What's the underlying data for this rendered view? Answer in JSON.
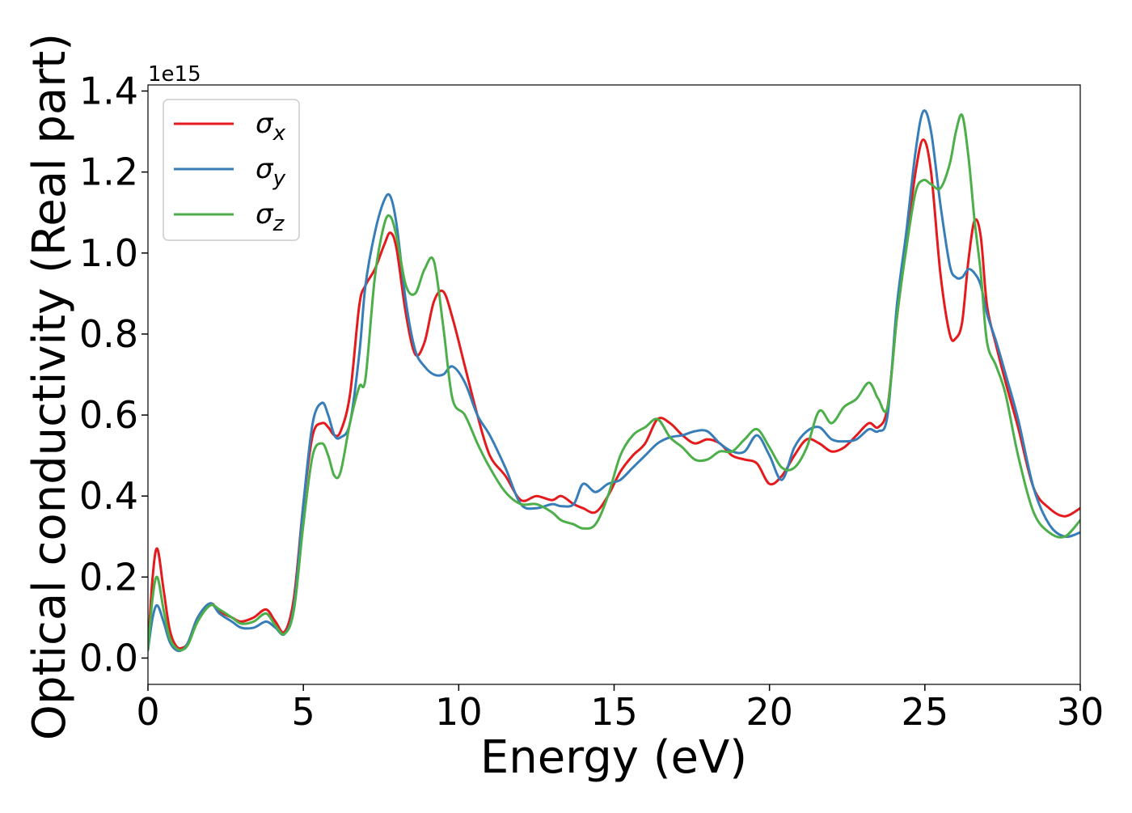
{
  "chart_data": {
    "type": "line",
    "title": "",
    "xlabel": "Energy (eV)",
    "ylabel": "Optical conductivity (Real part)",
    "y_offset_label": "1e15",
    "xlim": [
      0,
      30
    ],
    "ylim": [
      -0.065,
      1.415
    ],
    "x_ticks": [
      0,
      5,
      10,
      15,
      20,
      25,
      30
    ],
    "x_tick_labels": [
      "0",
      "5",
      "10",
      "15",
      "20",
      "25",
      "30"
    ],
    "y_ticks": [
      0.0,
      0.2,
      0.4,
      0.6,
      0.8,
      1.0,
      1.2,
      1.4
    ],
    "y_tick_labels": [
      "0.0",
      "0.2",
      "0.4",
      "0.6",
      "0.8",
      "1.0",
      "1.2",
      "1.4"
    ],
    "grid": false,
    "legend_position": "top-left",
    "series": [
      {
        "name": "σx",
        "legend_symbol": "σ",
        "legend_subscript": "x",
        "color": "#e41a1c",
        "x": [
          0,
          0.15,
          0.3,
          0.5,
          0.7,
          0.9,
          1.1,
          1.3,
          1.6,
          2.0,
          2.3,
          2.7,
          3.0,
          3.4,
          3.8,
          4.1,
          4.4,
          4.7,
          5.0,
          5.3,
          5.6,
          5.8,
          6.0,
          6.2,
          6.5,
          6.8,
          7.0,
          7.3,
          7.6,
          7.8,
          8.0,
          8.3,
          8.6,
          8.9,
          9.2,
          9.5,
          9.8,
          10.2,
          10.6,
          11.0,
          11.5,
          12.0,
          12.5,
          13.0,
          13.3,
          13.7,
          14.0,
          14.4,
          14.8,
          15.2,
          15.6,
          16.0,
          16.4,
          16.8,
          17.2,
          17.6,
          18.0,
          18.4,
          18.8,
          19.2,
          19.6,
          20.0,
          20.4,
          20.8,
          21.2,
          21.6,
          22.0,
          22.4,
          22.8,
          23.2,
          23.5,
          23.8,
          24.1,
          24.4,
          24.7,
          24.95,
          25.2,
          25.5,
          25.8,
          26.0,
          26.2,
          26.4,
          26.6,
          26.8,
          27.0,
          27.3,
          27.6,
          28.0,
          28.5,
          29.0,
          29.5,
          30.0
        ],
        "y": [
          0.02,
          0.2,
          0.27,
          0.17,
          0.07,
          0.03,
          0.025,
          0.04,
          0.1,
          0.135,
          0.115,
          0.1,
          0.09,
          0.1,
          0.12,
          0.09,
          0.065,
          0.15,
          0.38,
          0.55,
          0.58,
          0.57,
          0.55,
          0.56,
          0.65,
          0.87,
          0.92,
          0.96,
          1.02,
          1.05,
          1.01,
          0.85,
          0.75,
          0.78,
          0.88,
          0.905,
          0.84,
          0.72,
          0.6,
          0.5,
          0.45,
          0.39,
          0.4,
          0.39,
          0.4,
          0.38,
          0.37,
          0.36,
          0.4,
          0.46,
          0.5,
          0.53,
          0.59,
          0.58,
          0.55,
          0.53,
          0.54,
          0.53,
          0.5,
          0.49,
          0.48,
          0.43,
          0.45,
          0.5,
          0.54,
          0.53,
          0.51,
          0.52,
          0.55,
          0.58,
          0.57,
          0.62,
          0.84,
          1.02,
          1.2,
          1.28,
          1.2,
          0.95,
          0.8,
          0.79,
          0.83,
          0.98,
          1.08,
          1.04,
          0.87,
          0.77,
          0.68,
          0.57,
          0.42,
          0.37,
          0.35,
          0.37
        ]
      },
      {
        "name": "σy",
        "legend_symbol": "σ",
        "legend_subscript": "y",
        "color": "#377eb8",
        "x": [
          0,
          0.15,
          0.3,
          0.5,
          0.7,
          0.9,
          1.1,
          1.3,
          1.6,
          2.0,
          2.3,
          2.7,
          3.0,
          3.4,
          3.8,
          4.1,
          4.4,
          4.7,
          5.0,
          5.3,
          5.6,
          5.8,
          6.0,
          6.2,
          6.5,
          6.8,
          7.0,
          7.3,
          7.6,
          7.8,
          8.0,
          8.3,
          8.6,
          8.9,
          9.2,
          9.5,
          9.8,
          10.2,
          10.6,
          11.0,
          11.5,
          12.0,
          12.5,
          13.0,
          13.3,
          13.7,
          14.0,
          14.4,
          14.8,
          15.2,
          15.6,
          16.0,
          16.4,
          16.8,
          17.2,
          17.6,
          18.0,
          18.4,
          18.8,
          19.2,
          19.6,
          20.0,
          20.4,
          20.8,
          21.2,
          21.6,
          22.0,
          22.4,
          22.8,
          23.2,
          23.5,
          23.8,
          24.1,
          24.4,
          24.7,
          24.95,
          25.2,
          25.5,
          25.8,
          26.0,
          26.2,
          26.4,
          26.6,
          26.8,
          27.0,
          27.3,
          27.6,
          28.0,
          28.5,
          29.0,
          29.5,
          30.0
        ],
        "y": [
          0.02,
          0.1,
          0.13,
          0.09,
          0.04,
          0.02,
          0.02,
          0.04,
          0.1,
          0.135,
          0.11,
          0.09,
          0.075,
          0.075,
          0.09,
          0.075,
          0.06,
          0.13,
          0.38,
          0.58,
          0.63,
          0.6,
          0.55,
          0.545,
          0.58,
          0.75,
          0.92,
          1.05,
          1.13,
          1.14,
          1.07,
          0.88,
          0.76,
          0.72,
          0.7,
          0.7,
          0.72,
          0.68,
          0.6,
          0.55,
          0.47,
          0.38,
          0.37,
          0.38,
          0.375,
          0.38,
          0.43,
          0.41,
          0.43,
          0.44,
          0.47,
          0.5,
          0.53,
          0.545,
          0.55,
          0.56,
          0.56,
          0.53,
          0.51,
          0.51,
          0.55,
          0.5,
          0.44,
          0.52,
          0.56,
          0.57,
          0.54,
          0.535,
          0.54,
          0.565,
          0.56,
          0.6,
          0.87,
          1.05,
          1.25,
          1.35,
          1.3,
          1.12,
          0.97,
          0.94,
          0.94,
          0.96,
          0.95,
          0.92,
          0.85,
          0.78,
          0.7,
          0.59,
          0.42,
          0.33,
          0.3,
          0.31
        ]
      },
      {
        "name": "σz",
        "legend_symbol": "σ",
        "legend_subscript": "z",
        "color": "#4daf4a",
        "x": [
          0,
          0.15,
          0.3,
          0.5,
          0.7,
          0.9,
          1.1,
          1.3,
          1.6,
          2.0,
          2.3,
          2.7,
          3.0,
          3.4,
          3.8,
          4.1,
          4.4,
          4.7,
          5.0,
          5.3,
          5.6,
          5.8,
          6.0,
          6.2,
          6.5,
          6.8,
          7.0,
          7.3,
          7.6,
          7.8,
          8.0,
          8.3,
          8.6,
          8.9,
          9.2,
          9.5,
          9.8,
          10.2,
          10.6,
          11.0,
          11.5,
          12.0,
          12.5,
          13.0,
          13.3,
          13.7,
          14.0,
          14.4,
          14.8,
          15.2,
          15.6,
          16.0,
          16.4,
          16.8,
          17.2,
          17.6,
          18.0,
          18.4,
          18.8,
          19.2,
          19.6,
          20.0,
          20.4,
          20.8,
          21.2,
          21.6,
          22.0,
          22.4,
          22.8,
          23.2,
          23.5,
          23.8,
          24.1,
          24.4,
          24.7,
          24.95,
          25.2,
          25.5,
          25.8,
          26.0,
          26.2,
          26.4,
          26.6,
          26.8,
          27.0,
          27.3,
          27.6,
          28.0,
          28.5,
          29.0,
          29.5,
          30.0
        ],
        "y": [
          0.02,
          0.15,
          0.2,
          0.12,
          0.05,
          0.025,
          0.02,
          0.035,
          0.09,
          0.13,
          0.12,
          0.1,
          0.085,
          0.09,
          0.11,
          0.08,
          0.06,
          0.12,
          0.33,
          0.5,
          0.53,
          0.5,
          0.45,
          0.46,
          0.58,
          0.67,
          0.69,
          0.94,
          1.07,
          1.09,
          1.04,
          0.92,
          0.9,
          0.96,
          0.98,
          0.82,
          0.64,
          0.6,
          0.53,
          0.47,
          0.41,
          0.38,
          0.38,
          0.36,
          0.34,
          0.33,
          0.32,
          0.33,
          0.4,
          0.5,
          0.55,
          0.57,
          0.59,
          0.545,
          0.52,
          0.49,
          0.49,
          0.51,
          0.51,
          0.54,
          0.565,
          0.52,
          0.47,
          0.47,
          0.52,
          0.61,
          0.58,
          0.62,
          0.64,
          0.68,
          0.64,
          0.62,
          0.84,
          1.01,
          1.15,
          1.18,
          1.17,
          1.16,
          1.22,
          1.3,
          1.34,
          1.24,
          1.08,
          0.95,
          0.78,
          0.72,
          0.65,
          0.5,
          0.36,
          0.31,
          0.3,
          0.34
        ]
      }
    ]
  }
}
